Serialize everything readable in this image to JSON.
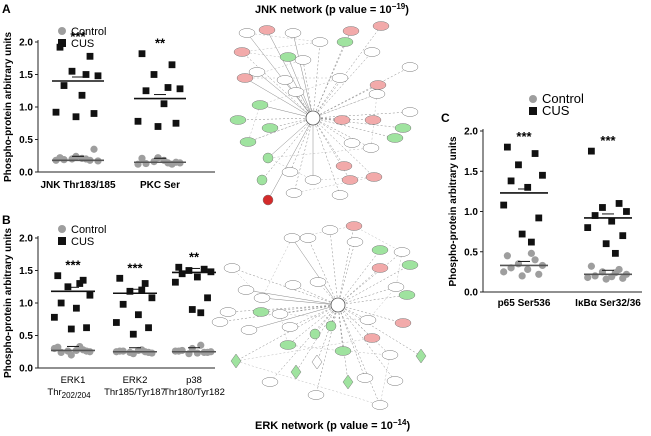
{
  "panel_letters": {
    "a": "A",
    "b": "B",
    "c": "C"
  },
  "networks": {
    "jnk_title": "JNK network (p value = 10",
    "jnk_exp": "−19",
    "jnk_close": ")",
    "erk_title": "ERK  network (p value = 10",
    "erk_exp": "−14",
    "erk_close": ")"
  },
  "colors": {
    "control": "#9e9e9e",
    "cus": "#111111",
    "network_up": "#f2aaaa",
    "network_down": "#9fe39f",
    "network_strong_up": "#d42a2a",
    "network_neutral": "#ffffff"
  },
  "chart_data": [
    {
      "id": "A",
      "type": "scatter",
      "ylabel": "Phospho-protein arbitrary units",
      "ylim": [
        0,
        2.0
      ],
      "yticks": [
        "0.0",
        "0.5",
        "1.0",
        "1.5",
        "2.0"
      ],
      "legend": [
        "Control",
        "CUS"
      ],
      "legend_position": "top-left",
      "categories": [
        {
          "label": "JNK Thr183/185",
          "sub": ""
        },
        {
          "label": "PKC Ser",
          "sub": ""
        }
      ],
      "significance": [
        "***",
        "**"
      ],
      "series": [
        {
          "name": "Control",
          "marker": "circle",
          "values": [
            [
              0.22,
              0.18,
              0.2,
              0.17,
              0.19,
              0.21,
              0.18,
              0.35,
              0.24,
              0.2
            ],
            [
              0.21,
              0.12,
              0.16,
              0.14,
              0.13,
              0.18,
              0.12,
              0.15,
              0.22,
              0.14
            ]
          ],
          "means": [
            0.18,
            0.15
          ]
        },
        {
          "name": "CUS",
          "marker": "square",
          "values": [
            [
              1.92,
              1.78,
              1.55,
              1.48,
              1.33,
              1.18,
              0.92,
              0.9,
              0.85,
              1.5
            ],
            [
              1.82,
              1.65,
              1.5,
              1.28,
              1.25,
              1.05,
              0.78,
              0.75,
              0.7,
              1.3
            ]
          ],
          "means": [
            1.4,
            1.13
          ]
        }
      ]
    },
    {
      "id": "B",
      "type": "scatter",
      "ylabel": "Phospho-protein arbitrary units",
      "ylim": [
        0,
        2.0
      ],
      "yticks": [
        "0.0",
        "0.5",
        "1.0",
        "1.5",
        "2.0"
      ],
      "legend": [
        "Control",
        "CUS"
      ],
      "legend_position": "top-left",
      "categories": [
        {
          "label": "ERK1",
          "sub": "Thr",
          "sub2": "202/204"
        },
        {
          "label": "ERK2",
          "sub": "Thr185/Tyr187"
        },
        {
          "label": "p38",
          "sub": "Thr180/Tyr182"
        }
      ],
      "significance": [
        "***",
        "***",
        "**"
      ],
      "series": [
        {
          "name": "Control",
          "marker": "circle",
          "values": [
            [
              0.32,
              0.28,
              0.26,
              0.25,
              0.24,
              0.27,
              0.3,
              0.26,
              0.2,
              0.33
            ],
            [
              0.26,
              0.25,
              0.24,
              0.23,
              0.26,
              0.27,
              0.25,
              0.24,
              0.22,
              0.28
            ],
            [
              0.26,
              0.24,
              0.22,
              0.25,
              0.27,
              0.23,
              0.26,
              0.24,
              0.3,
              0.35
            ]
          ],
          "means": [
            0.27,
            0.25,
            0.25
          ]
        },
        {
          "name": "CUS",
          "marker": "square",
          "values": [
            [
              1.42,
              1.35,
              1.25,
              1.12,
              1.0,
              0.92,
              0.78,
              0.62,
              0.6,
              1.3
            ],
            [
              1.38,
              1.3,
              1.18,
              1.08,
              0.98,
              0.82,
              0.7,
              0.62,
              0.52,
              1.2
            ],
            [
              1.55,
              1.52,
              1.5,
              1.48,
              1.45,
              1.4,
              1.32,
              1.08,
              0.9,
              0.85
            ]
          ],
          "means": [
            1.18,
            1.15,
            1.47
          ]
        }
      ]
    },
    {
      "id": "C",
      "type": "scatter",
      "ylabel": "Phospho-protein arbitrary units",
      "ylim": [
        0,
        2.0
      ],
      "yticks": [
        "0.0",
        "0.5",
        "1.0",
        "1.5",
        "2.0"
      ],
      "legend": [
        "Control",
        "CUS"
      ],
      "legend_position": "top-left",
      "categories": [
        {
          "label": "p65 Ser536",
          "sub": ""
        },
        {
          "label": "IκBα Ser32/36",
          "sub": ""
        }
      ],
      "significance": [
        "***",
        "***"
      ],
      "series": [
        {
          "name": "Control",
          "marker": "circle",
          "values": [
            [
              0.45,
              0.4,
              0.35,
              0.33,
              0.3,
              0.28,
              0.25,
              0.22,
              0.2,
              0.48
            ],
            [
              0.32,
              0.28,
              0.25,
              0.22,
              0.2,
              0.19,
              0.18,
              0.17,
              0.16,
              0.24
            ]
          ],
          "means": [
            0.33,
            0.22
          ]
        },
        {
          "name": "CUS",
          "marker": "square",
          "values": [
            [
              1.8,
              1.72,
              1.58,
              1.45,
              1.38,
              1.3,
              1.08,
              0.92,
              0.72,
              0.62
            ],
            [
              1.75,
              1.1,
              1.05,
              1.0,
              0.95,
              0.88,
              0.8,
              0.7,
              0.6,
              0.48
            ]
          ],
          "means": [
            1.23,
            0.92
          ]
        }
      ]
    }
  ]
}
